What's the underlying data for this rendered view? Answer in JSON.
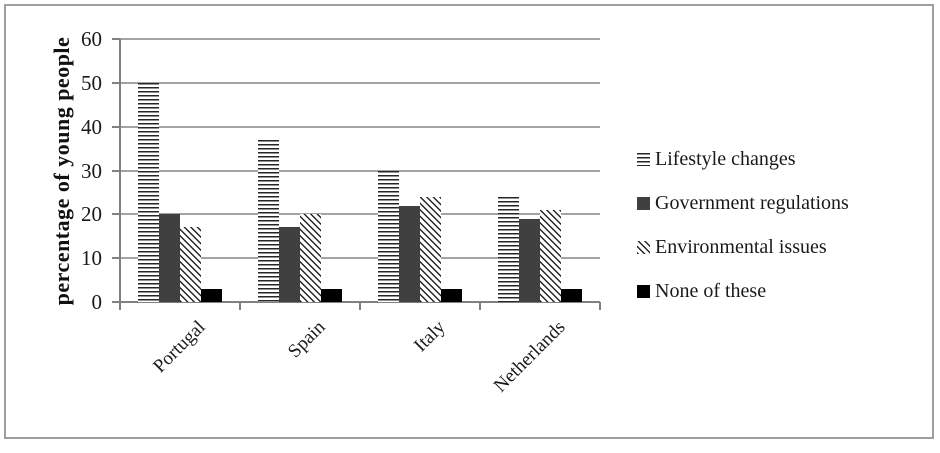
{
  "chart_data": {
    "type": "bar",
    "title": "",
    "xlabel": "",
    "ylabel": "percentage of young people",
    "categories": [
      "Portugal",
      "Spain",
      "Italy",
      "Netherlands"
    ],
    "series": [
      {
        "name": "Lifestyle changes",
        "pattern": "horizontal-stripes",
        "values": [
          50,
          37,
          30,
          24
        ]
      },
      {
        "name": "Government regulations",
        "pattern": "solid-dark-gray",
        "values": [
          20,
          17,
          22,
          19
        ]
      },
      {
        "name": "Environmental issues",
        "pattern": "diagonal-stripes",
        "values": [
          17,
          20,
          24,
          21
        ]
      },
      {
        "name": "None of these",
        "pattern": "solid-black",
        "values": [
          3,
          3,
          3,
          3
        ]
      }
    ],
    "ylim": [
      0,
      60
    ],
    "yticks": [
      0,
      10,
      20,
      30,
      40,
      50,
      60
    ],
    "grid": true,
    "legend_position": "right",
    "colors": {
      "solid_dark_gray": "#404040",
      "solid_black": "#000000",
      "stripe_ink": "#262626",
      "stripe_background": "#ffffff",
      "gridline": "#a3a3a3",
      "axis": "#808080",
      "text": "#1a1a1a",
      "frame_border": "#9c9ea0"
    }
  }
}
